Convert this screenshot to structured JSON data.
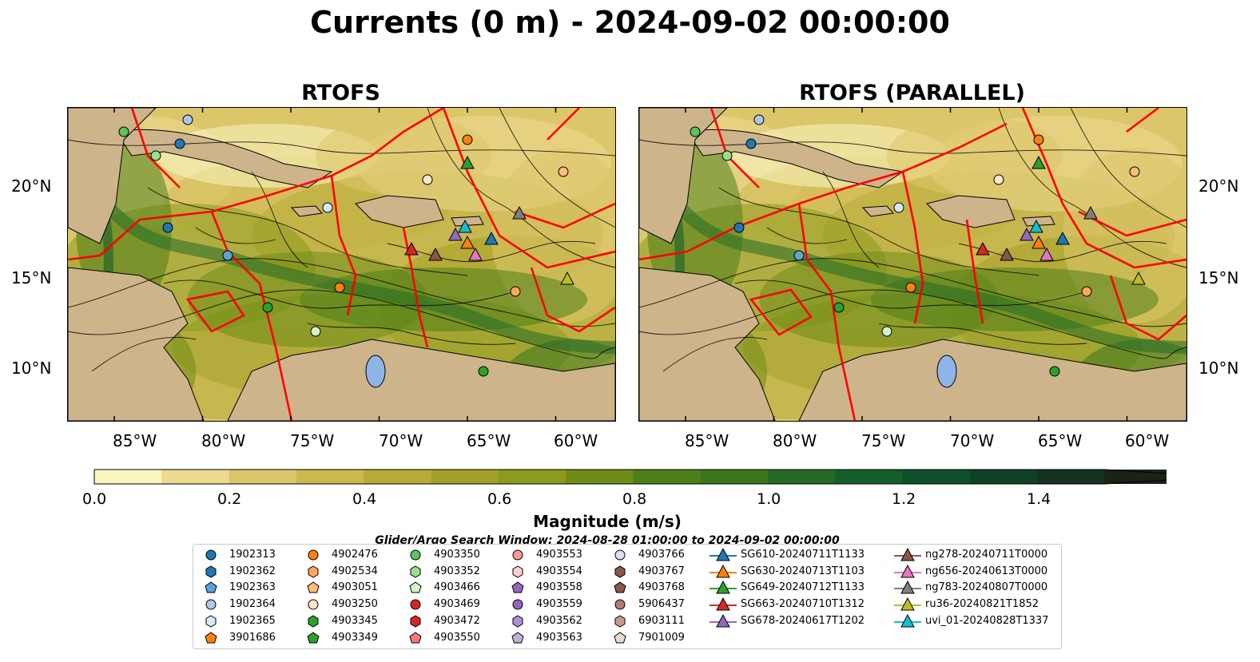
{
  "title": "Currents (0 m) - 2024-09-02 00:00:00",
  "panels": [
    {
      "title": "RTOFS"
    },
    {
      "title": "RTOFS (PARALLEL)"
    }
  ],
  "lat_labels": [
    "20°N",
    "15°N",
    "10°N"
  ],
  "lon_labels": [
    "85°W",
    "80°W",
    "75°W",
    "70°W",
    "65°W",
    "60°W"
  ],
  "colorbar": {
    "label": "Magnitude (m/s)",
    "ticks": [
      "0.0",
      "0.2",
      "0.4",
      "0.6",
      "0.8",
      "1.0",
      "1.2",
      "1.4"
    ],
    "colors": [
      "#fbf5c2",
      "#ecdb91",
      "#dcc66a",
      "#cdb84f",
      "#b7ab38",
      "#a3a027",
      "#8c9a1d",
      "#6f8c16",
      "#4f7f1a",
      "#3b761f",
      "#256b26",
      "#125f2c",
      "#0d502b",
      "#0f4126",
      "#15311f",
      "#1b2317"
    ]
  },
  "search_window": "Glider/Argo Search Window: 2024-08-28 01:00:00 to 2024-09-02 00:00:00",
  "legend": {
    "argo": [
      {
        "id": "1902313",
        "color": "#1f77b4",
        "shape": "circle"
      },
      {
        "id": "1902362",
        "color": "#1f77b4",
        "shape": "hexagon"
      },
      {
        "id": "1902363",
        "color": "#5fa2d6",
        "shape": "pentagon"
      },
      {
        "id": "1902364",
        "color": "#aec7e8",
        "shape": "circle"
      },
      {
        "id": "1902365",
        "color": "#d6e8f7",
        "shape": "hexagon"
      },
      {
        "id": "3901686",
        "color": "#ff7f0e",
        "shape": "pentagon"
      },
      {
        "id": "4902476",
        "color": "#ff7f0e",
        "shape": "circle"
      },
      {
        "id": "4902534",
        "color": "#ffa65c",
        "shape": "hexagon"
      },
      {
        "id": "4903051",
        "color": "#ffbb78",
        "shape": "pentagon"
      },
      {
        "id": "4903250",
        "color": "#ffe6c8",
        "shape": "circle"
      },
      {
        "id": "4903345",
        "color": "#2ca02c",
        "shape": "hexagon"
      },
      {
        "id": "4903349",
        "color": "#2ca02c",
        "shape": "pentagon"
      },
      {
        "id": "4903350",
        "color": "#5bc45b",
        "shape": "circle"
      },
      {
        "id": "4903352",
        "color": "#98df8a",
        "shape": "hexagon"
      },
      {
        "id": "4903466",
        "color": "#d4f2cc",
        "shape": "pentagon"
      },
      {
        "id": "4903469",
        "color": "#d62728",
        "shape": "circle"
      },
      {
        "id": "4903472",
        "color": "#d62728",
        "shape": "hexagon"
      },
      {
        "id": "4903550",
        "color": "#f07a7a",
        "shape": "pentagon"
      },
      {
        "id": "4903553",
        "color": "#ff9896",
        "shape": "circle"
      },
      {
        "id": "4903554",
        "color": "#ffd1d0",
        "shape": "hexagon"
      },
      {
        "id": "4903558",
        "color": "#9467bd",
        "shape": "pentagon"
      },
      {
        "id": "4903559",
        "color": "#9467bd",
        "shape": "circle"
      },
      {
        "id": "4903562",
        "color": "#b08fd6",
        "shape": "hexagon"
      },
      {
        "id": "4903563",
        "color": "#c5b0d5",
        "shape": "pentagon"
      },
      {
        "id": "4903766",
        "color": "#e6d9f2",
        "shape": "circle"
      },
      {
        "id": "4903767",
        "color": "#8c564b",
        "shape": "hexagon"
      },
      {
        "id": "4903768",
        "color": "#8c564b",
        "shape": "pentagon"
      },
      {
        "id": "5906437",
        "color": "#b07d70",
        "shape": "circle"
      },
      {
        "id": "6903111",
        "color": "#c49c94",
        "shape": "hexagon"
      },
      {
        "id": "7901009",
        "color": "#ecd7d2",
        "shape": "pentagon"
      }
    ],
    "gliders": [
      {
        "id": "SG610-20240711T1133",
        "color": "#1f77b4"
      },
      {
        "id": "SG630-20240713T1103",
        "color": "#ff7f0e"
      },
      {
        "id": "SG649-20240712T1133",
        "color": "#2ca02c"
      },
      {
        "id": "SG663-20240710T1312",
        "color": "#d62728"
      },
      {
        "id": "SG678-20240617T1202",
        "color": "#9467bd"
      },
      {
        "id": "ng278-20240711T0000",
        "color": "#8c564b"
      },
      {
        "id": "ng656-20240613T0000",
        "color": "#e377c2"
      },
      {
        "id": "ng783-20240807T0000",
        "color": "#7f7f7f"
      },
      {
        "id": "ru36-20240821T1852",
        "color": "#bcbd22"
      },
      {
        "id": "uvi_01-20240828T1337",
        "color": "#17becf"
      }
    ]
  },
  "colors": {
    "land": "#cdb48b",
    "lake": "#8fb4e8",
    "eez_line": "#ff0000",
    "streamline": "#000000"
  }
}
